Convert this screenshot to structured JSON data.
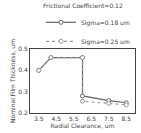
{
  "chart_data": {
    "type": "line",
    "title": "Frictional Coefficient=0.12",
    "xlabel": "Radial Clearance, um",
    "ylabel": "Nominal Film Thickness, um",
    "xlim": [
      3.0,
      9.0
    ],
    "ylim": [
      0.2,
      0.5
    ],
    "xticks": [
      3.5,
      4.5,
      5.5,
      6.5,
      7.5,
      8.5
    ],
    "yticks": [
      0.2,
      0.3,
      0.4,
      0.5
    ],
    "grid": false,
    "legend": "upper right",
    "x": [
      3.5,
      4.2,
      6.0,
      6.0,
      7.5,
      8.5
    ],
    "series": [
      {
        "name": "Sigma=0.18 um",
        "color": "#666666",
        "line_style": "solid",
        "marker": "circle",
        "values": [
          0.4,
          0.46,
          0.46,
          0.28,
          0.258,
          0.248
        ]
      },
      {
        "name": "Sigma=0.25 um",
        "color": "#999999",
        "line_style": "dotted",
        "marker": "circle",
        "values": [
          0.4,
          0.46,
          0.46,
          0.255,
          0.245,
          0.238
        ]
      }
    ]
  }
}
